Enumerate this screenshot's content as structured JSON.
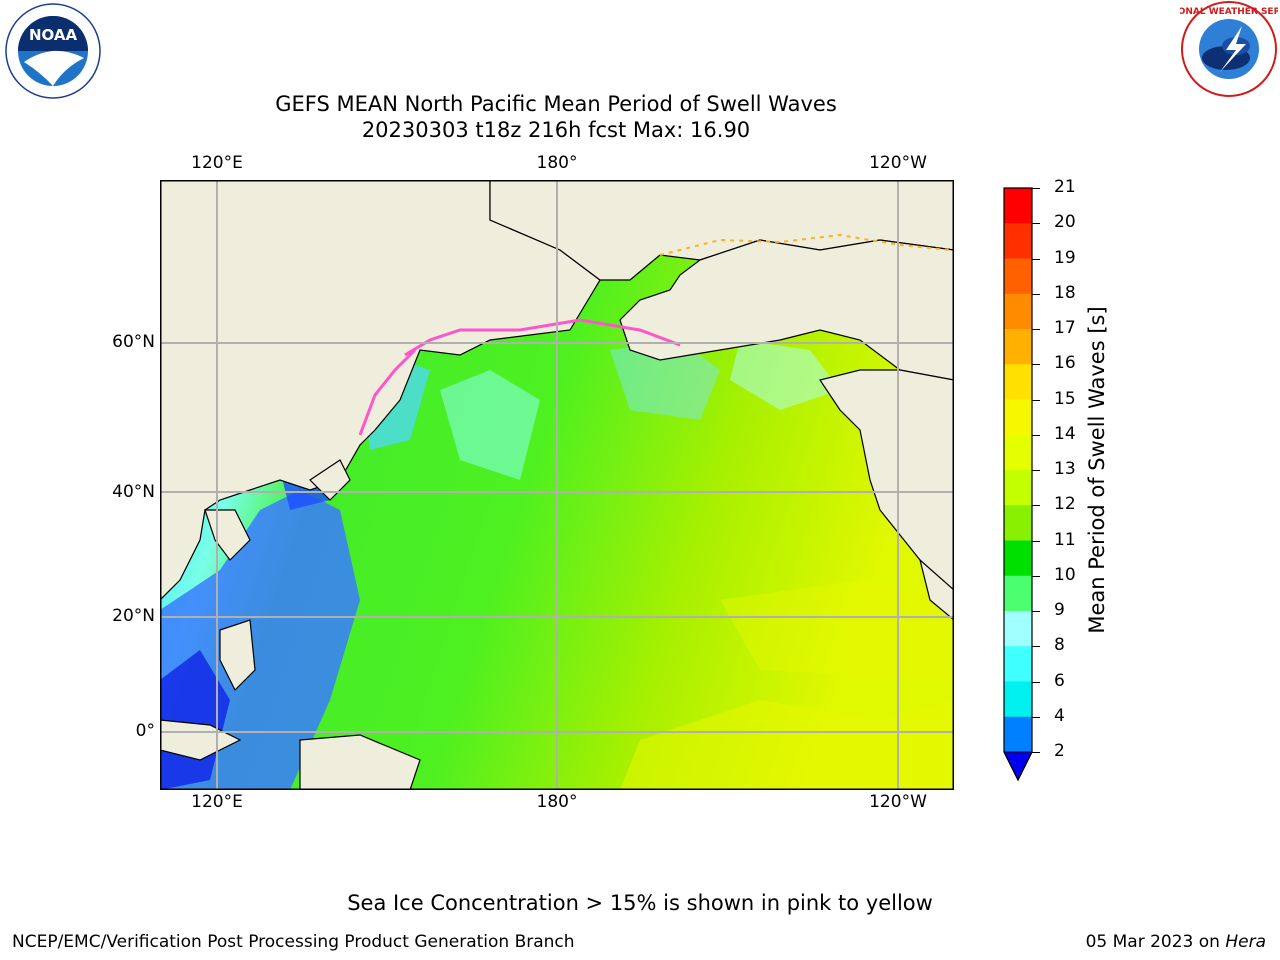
{
  "logos": {
    "noaa_text": "NOAA",
    "noaa_ring": "NATIONAL OCEANIC AND ATMOSPHERIC ADMINISTRATION · U.S. DEPARTMENT OF COMMERCE",
    "nws_ring": "NATIONAL WEATHER SERVICE"
  },
  "title": {
    "line1": "GEFS MEAN North Pacific Mean Period of Swell Waves",
    "line2": "20230303 t18z 216h fcst   Max: 16.90"
  },
  "map": {
    "lon_labels": [
      "120°E",
      "180°",
      "120°W"
    ],
    "lat_labels": [
      "60°N",
      "40°N",
      "20°N",
      "0°"
    ],
    "land_color": "#efeddc",
    "grid_color": "#b0b0b0"
  },
  "colorbar": {
    "label": "Mean Period of Swell Waves [s]",
    "ticks": [
      "21",
      "20",
      "19",
      "18",
      "17",
      "16",
      "15",
      "14",
      "13",
      "12",
      "11",
      "10",
      "9",
      "8",
      "6",
      "4",
      "2"
    ],
    "colors_top_to_bottom": [
      "#ff0000",
      "#ff3000",
      "#ff6000",
      "#ff8c00",
      "#ffb000",
      "#ffe000",
      "#f7f700",
      "#e4ff00",
      "#c4ff00",
      "#88f000",
      "#00e000",
      "#4cff70",
      "#a0ffff",
      "#40ffff",
      "#00f0f0",
      "#0080ff"
    ],
    "under_color": "#0000ee"
  },
  "note": "Sea Ice Concentration > 15% is shown in pink to yellow",
  "footer": {
    "left": "NCEP/EMC/Verification Post Processing Product Generation Branch",
    "date": "05 Mar 2023 on",
    "host": "Hera"
  }
}
